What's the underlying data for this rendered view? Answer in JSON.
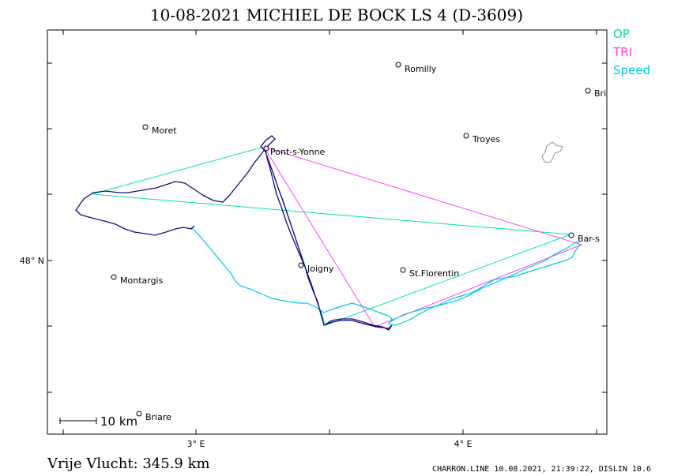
{
  "title": "10-08-2021   MICHIEL DE BOCK    LS 4 (D-3609)",
  "footer": {
    "distance_label": "Vrije Vlucht:  345.9 km",
    "credit": "CHARRON.LINE 10.08.2021, 21:39:22, DISLIN 10.6"
  },
  "axes": {
    "x_ticks": [
      "3° E",
      "4° E"
    ],
    "y_ticks": [
      "48° N"
    ]
  },
  "legend": [
    {
      "label": "OP",
      "color": "#00e5a0"
    },
    {
      "label": "TRI",
      "color": "#ff40ff"
    },
    {
      "label": "Speed",
      "color": "#00c8e0"
    }
  ],
  "scale_bar": {
    "label": "10  km"
  },
  "towns": [
    {
      "name": "Romilly"
    },
    {
      "name": "Bri"
    },
    {
      "name": "Moret"
    },
    {
      "name": "Troyes"
    },
    {
      "name": "Pont-s-Yonne"
    },
    {
      "name": "Bar-s"
    },
    {
      "name": "Joigny"
    },
    {
      "name": "St.Florentin"
    },
    {
      "name": "Montargis"
    },
    {
      "name": "Briare"
    }
  ],
  "colors": {
    "track_dark": "#1a0a80",
    "track_speed": "#00c8e0",
    "op_line": "#00e5a0",
    "tri_line": "#ff40ff",
    "frame": "#000000",
    "lake": "#909090"
  }
}
